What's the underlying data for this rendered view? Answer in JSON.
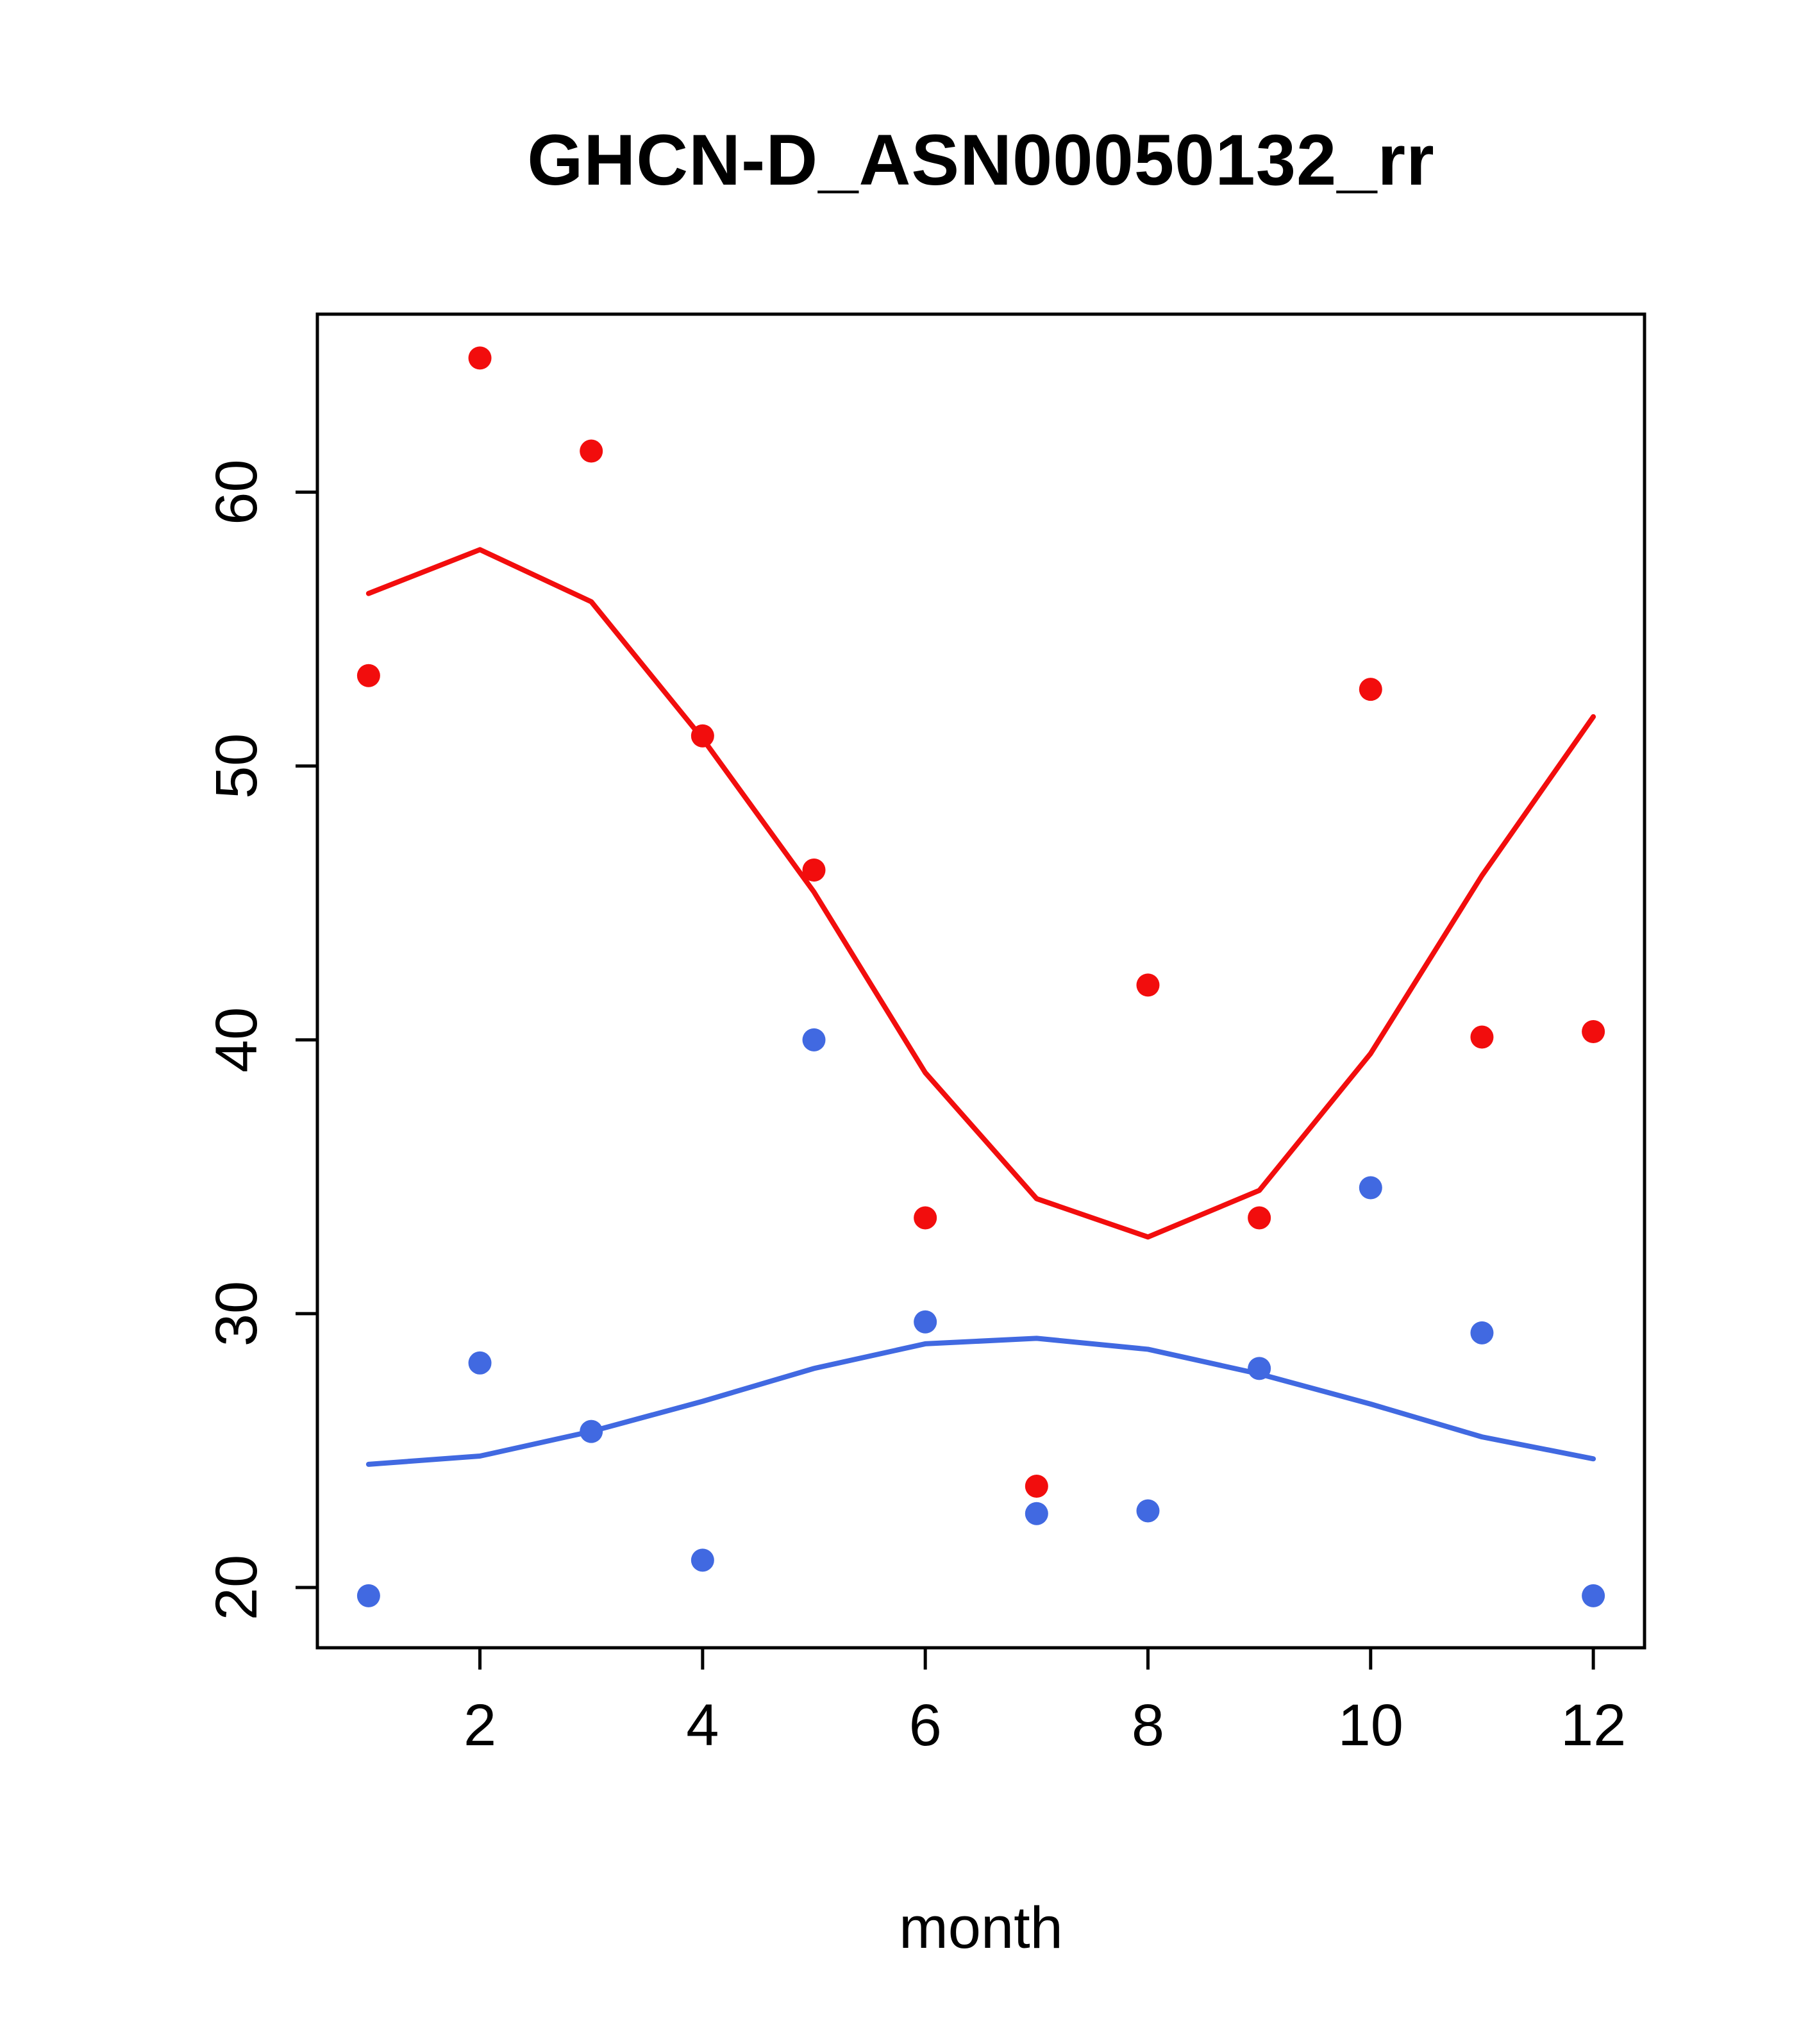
{
  "chart_data": {
    "type": "scatter",
    "title": "GHCN-D_ASN00050132_rr",
    "xlabel": "month",
    "ylabel": "",
    "xlim": [
      0.54,
      12.46
    ],
    "ylim": [
      17.8,
      66.5
    ],
    "x_ticks": [
      2,
      4,
      6,
      8,
      10,
      12
    ],
    "y_ticks": [
      20,
      30,
      40,
      50,
      60
    ],
    "x": [
      1,
      2,
      3,
      4,
      5,
      6,
      7,
      8,
      9,
      10,
      11,
      12
    ],
    "grid": false,
    "legend": null,
    "colors": {
      "red": "#f20d0d",
      "blue": "#4169e1",
      "axis": "#000000"
    },
    "series": [
      {
        "name": "red-points",
        "type": "points",
        "color": "#f20d0d",
        "values": [
          53.3,
          64.9,
          61.5,
          51.1,
          46.2,
          33.5,
          23.7,
          42.0,
          33.5,
          52.8,
          40.1,
          40.3
        ]
      },
      {
        "name": "blue-points",
        "type": "points",
        "color": "#4169e1",
        "values": [
          19.7,
          28.2,
          25.7,
          21.0,
          40.0,
          29.7,
          22.7,
          22.8,
          28.0,
          34.6,
          29.3,
          19.7
        ]
      },
      {
        "name": "red-line",
        "type": "line",
        "color": "#f20d0d",
        "values": [
          56.3,
          57.9,
          56.0,
          51.0,
          45.4,
          38.8,
          34.2,
          32.8,
          34.5,
          39.5,
          46.0,
          51.8
        ]
      },
      {
        "name": "blue-line",
        "type": "line",
        "color": "#4169e1",
        "values": [
          24.5,
          24.8,
          25.7,
          26.8,
          28.0,
          28.9,
          29.1,
          28.7,
          27.8,
          26.7,
          25.5,
          24.7
        ]
      }
    ]
  }
}
